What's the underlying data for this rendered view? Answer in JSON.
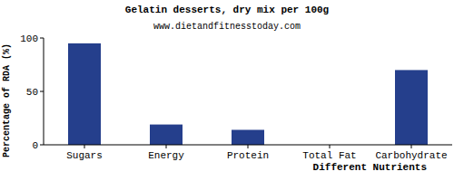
{
  "chart_data": {
    "type": "bar",
    "title": "Gelatin desserts, dry mix per 100g",
    "subtitle": "www.dietandfitnesstoday.com",
    "x_label": "Different Nutrients",
    "y_label": "Percentage of RDA (%)",
    "categories": [
      "Sugars",
      "Energy",
      "Protein",
      "Total Fat",
      "Carbohydrate"
    ],
    "values": [
      95,
      19,
      14,
      0,
      70
    ],
    "color": "#253f8c",
    "ylim": [
      0,
      100
    ],
    "yticks": [
      0,
      50,
      100
    ],
    "grid": false
  }
}
